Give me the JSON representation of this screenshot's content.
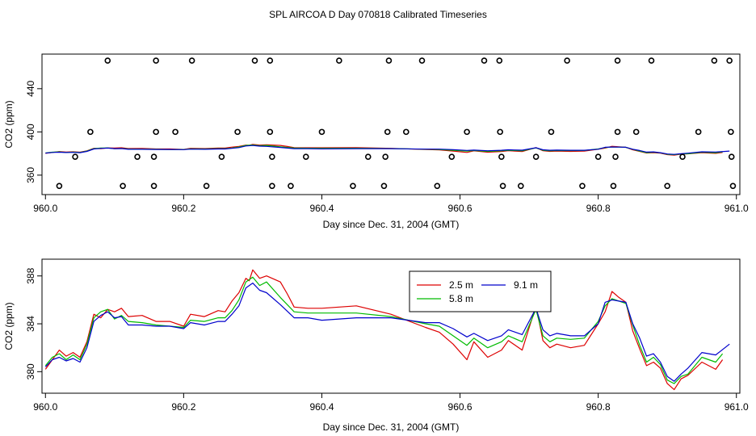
{
  "title": "SPL AIRCOA D  Day 070818  Calibrated Timeseries",
  "colors": {
    "red": "#dd0000",
    "green": "#00bb00",
    "blue": "#0000cc",
    "axis": "#000000"
  },
  "chart_data": [
    {
      "type": "scatter+line",
      "title": "",
      "xlabel": "Day since Dec. 31, 2004 (GMT)",
      "ylabel": "CO2 (ppm)",
      "xlim": [
        959.995,
        961.005
      ],
      "ylim": [
        342,
        472
      ],
      "xticks": [
        960.0,
        960.2,
        960.4,
        960.6,
        960.8,
        961.0
      ],
      "xtick_labels": [
        "960.0",
        "960.2",
        "960.4",
        "960.6",
        "960.8",
        "961.0"
      ],
      "yticks": [
        360,
        400,
        440
      ],
      "ytick_labels": [
        "360",
        "400",
        "440"
      ],
      "calibration_points": [
        {
          "x": 960.09,
          "y": 466
        },
        {
          "x": 960.16,
          "y": 466
        },
        {
          "x": 960.212,
          "y": 466
        },
        {
          "x": 960.303,
          "y": 466
        },
        {
          "x": 960.325,
          "y": 466
        },
        {
          "x": 960.425,
          "y": 466
        },
        {
          "x": 960.497,
          "y": 466
        },
        {
          "x": 960.545,
          "y": 466
        },
        {
          "x": 960.635,
          "y": 466
        },
        {
          "x": 960.657,
          "y": 466
        },
        {
          "x": 960.755,
          "y": 466
        },
        {
          "x": 960.828,
          "y": 466
        },
        {
          "x": 960.877,
          "y": 466
        },
        {
          "x": 960.968,
          "y": 466
        },
        {
          "x": 960.99,
          "y": 466
        },
        {
          "x": 960.065,
          "y": 400
        },
        {
          "x": 960.16,
          "y": 400
        },
        {
          "x": 960.188,
          "y": 400
        },
        {
          "x": 960.278,
          "y": 400
        },
        {
          "x": 960.325,
          "y": 400
        },
        {
          "x": 960.4,
          "y": 400
        },
        {
          "x": 960.495,
          "y": 400
        },
        {
          "x": 960.522,
          "y": 400
        },
        {
          "x": 960.61,
          "y": 400
        },
        {
          "x": 960.658,
          "y": 400
        },
        {
          "x": 960.732,
          "y": 400
        },
        {
          "x": 960.828,
          "y": 400
        },
        {
          "x": 960.855,
          "y": 400
        },
        {
          "x": 960.945,
          "y": 400
        },
        {
          "x": 960.992,
          "y": 400
        },
        {
          "x": 960.043,
          "y": 377
        },
        {
          "x": 960.133,
          "y": 377
        },
        {
          "x": 960.157,
          "y": 377
        },
        {
          "x": 960.255,
          "y": 377
        },
        {
          "x": 960.328,
          "y": 377
        },
        {
          "x": 960.377,
          "y": 377
        },
        {
          "x": 960.467,
          "y": 377
        },
        {
          "x": 960.492,
          "y": 377
        },
        {
          "x": 960.588,
          "y": 377
        },
        {
          "x": 960.66,
          "y": 377
        },
        {
          "x": 960.71,
          "y": 377
        },
        {
          "x": 960.8,
          "y": 377
        },
        {
          "x": 960.825,
          "y": 377
        },
        {
          "x": 960.922,
          "y": 377
        },
        {
          "x": 960.993,
          "y": 377
        },
        {
          "x": 960.02,
          "y": 350
        },
        {
          "x": 960.112,
          "y": 350
        },
        {
          "x": 960.157,
          "y": 350
        },
        {
          "x": 960.233,
          "y": 350
        },
        {
          "x": 960.328,
          "y": 350
        },
        {
          "x": 960.355,
          "y": 350
        },
        {
          "x": 960.445,
          "y": 350
        },
        {
          "x": 960.49,
          "y": 350
        },
        {
          "x": 960.567,
          "y": 350
        },
        {
          "x": 960.662,
          "y": 350
        },
        {
          "x": 960.688,
          "y": 350
        },
        {
          "x": 960.777,
          "y": 350
        },
        {
          "x": 960.822,
          "y": 350
        },
        {
          "x": 960.9,
          "y": 350
        },
        {
          "x": 960.995,
          "y": 350
        }
      ],
      "series": [
        {
          "name": "2.5 m",
          "color": "red",
          "source": "chart_data.1.series.0"
        },
        {
          "name": "5.8 m",
          "color": "green",
          "source": "chart_data.1.series.1"
        },
        {
          "name": "9.1 m",
          "color": "blue",
          "source": "chart_data.1.series.2"
        }
      ]
    },
    {
      "type": "line",
      "title": "",
      "xlabel": "Day since Dec. 31, 2004 (GMT)",
      "ylabel": "CO2 (ppm)",
      "xlim": [
        959.995,
        961.005
      ],
      "ylim": [
        378.2,
        389.4
      ],
      "xticks": [
        960.0,
        960.2,
        960.4,
        960.6,
        960.8,
        961.0
      ],
      "xtick_labels": [
        "960.0",
        "960.2",
        "960.4",
        "960.6",
        "960.8",
        "961.0"
      ],
      "yticks": [
        380,
        384,
        388
      ],
      "ytick_labels": [
        "380",
        "384",
        "388"
      ],
      "legend": {
        "position": "top-center",
        "entries": [
          "2.5 m",
          "5.8 m",
          "9.1 m"
        ]
      },
      "series": [
        {
          "name": "2.5 m",
          "color": "red",
          "x": [
            960.0,
            960.01,
            960.02,
            960.03,
            960.04,
            960.05,
            960.06,
            960.07,
            960.08,
            960.09,
            960.1,
            960.11,
            960.12,
            960.14,
            960.16,
            960.18,
            960.2,
            960.21,
            960.23,
            960.25,
            960.26,
            960.27,
            960.28,
            960.29,
            960.295,
            960.3,
            960.31,
            960.32,
            960.34,
            960.35,
            960.36,
            960.38,
            960.4,
            960.45,
            960.5,
            960.55,
            960.57,
            960.59,
            960.61,
            960.62,
            960.64,
            960.66,
            960.67,
            960.69,
            960.71,
            960.72,
            960.73,
            960.74,
            960.76,
            960.78,
            960.8,
            960.81,
            960.82,
            960.83,
            960.84,
            960.85,
            960.86,
            960.87,
            960.88,
            960.89,
            960.9,
            960.91,
            960.92,
            960.93,
            960.95,
            960.97,
            960.98
          ],
          "values": [
            380.2,
            381.0,
            381.8,
            381.3,
            381.6,
            381.2,
            382.5,
            384.8,
            384.5,
            385.2,
            385.0,
            385.3,
            384.6,
            384.7,
            384.2,
            384.2,
            383.8,
            384.8,
            384.6,
            385.1,
            385.0,
            385.9,
            386.6,
            387.8,
            387.6,
            388.5,
            387.8,
            388.0,
            387.5,
            386.5,
            385.4,
            385.3,
            385.3,
            385.5,
            384.8,
            383.7,
            383.3,
            382.3,
            381.0,
            382.5,
            381.2,
            381.8,
            382.6,
            381.8,
            385.5,
            382.6,
            382.0,
            382.3,
            382.0,
            382.2,
            384.0,
            385.0,
            386.7,
            386.2,
            385.8,
            383.4,
            381.9,
            380.5,
            380.8,
            380.3,
            379.0,
            378.5,
            379.4,
            379.7,
            380.8,
            380.2,
            381.0
          ]
        },
        {
          "name": "5.8 m",
          "color": "green",
          "x": [
            960.0,
            960.01,
            960.02,
            960.03,
            960.04,
            960.05,
            960.06,
            960.07,
            960.08,
            960.09,
            960.1,
            960.11,
            960.12,
            960.14,
            960.16,
            960.18,
            960.2,
            960.21,
            960.23,
            960.25,
            960.26,
            960.27,
            960.28,
            960.29,
            960.3,
            960.31,
            960.32,
            960.34,
            960.36,
            960.38,
            960.4,
            960.45,
            960.5,
            960.55,
            960.57,
            960.59,
            960.61,
            960.62,
            960.64,
            960.66,
            960.67,
            960.69,
            960.71,
            960.72,
            960.73,
            960.74,
            960.76,
            960.78,
            960.8,
            960.81,
            960.82,
            960.83,
            960.84,
            960.85,
            960.86,
            960.87,
            960.88,
            960.89,
            960.9,
            960.91,
            960.92,
            960.93,
            960.95,
            960.97,
            960.98
          ],
          "values": [
            380.5,
            381.2,
            381.5,
            381.0,
            381.4,
            381.0,
            382.3,
            384.5,
            385.0,
            385.2,
            384.4,
            384.7,
            384.2,
            384.1,
            383.9,
            383.8,
            383.7,
            384.3,
            384.2,
            384.5,
            384.5,
            385.1,
            386.0,
            387.5,
            387.9,
            387.2,
            387.5,
            386.2,
            385.0,
            384.9,
            384.9,
            384.9,
            384.6,
            384.0,
            383.8,
            383.0,
            382.2,
            382.8,
            382.0,
            382.5,
            383.0,
            382.5,
            385.2,
            383.0,
            382.5,
            382.8,
            382.7,
            382.8,
            384.2,
            385.5,
            386.1,
            385.9,
            385.7,
            383.9,
            382.2,
            380.8,
            381.2,
            380.6,
            379.3,
            379.0,
            379.6,
            379.8,
            381.2,
            380.8,
            381.5
          ]
        },
        {
          "name": "9.1 m",
          "color": "blue",
          "x": [
            960.0,
            960.01,
            960.02,
            960.03,
            960.04,
            960.05,
            960.06,
            960.07,
            960.08,
            960.09,
            960.1,
            960.11,
            960.12,
            960.14,
            960.16,
            960.18,
            960.2,
            960.21,
            960.23,
            960.25,
            960.26,
            960.27,
            960.28,
            960.29,
            960.3,
            960.31,
            960.32,
            960.34,
            960.36,
            960.38,
            960.4,
            960.45,
            960.5,
            960.55,
            960.57,
            960.59,
            960.61,
            960.62,
            960.64,
            960.66,
            960.67,
            960.69,
            960.71,
            960.72,
            960.73,
            960.74,
            960.76,
            960.78,
            960.8,
            960.81,
            960.82,
            960.83,
            960.84,
            960.85,
            960.86,
            960.87,
            960.88,
            960.89,
            960.9,
            960.91,
            960.92,
            960.93,
            960.95,
            960.97,
            960.99
          ],
          "values": [
            380.4,
            381.0,
            381.2,
            380.9,
            381.1,
            380.8,
            382.0,
            384.2,
            384.7,
            385.0,
            384.5,
            384.6,
            383.9,
            383.9,
            383.8,
            383.8,
            383.6,
            384.1,
            383.9,
            384.2,
            384.2,
            384.8,
            385.5,
            387.0,
            387.4,
            386.8,
            386.6,
            385.6,
            384.5,
            384.5,
            384.3,
            384.5,
            384.5,
            384.1,
            384.1,
            383.6,
            382.9,
            383.2,
            382.6,
            383.0,
            383.5,
            383.1,
            385.3,
            383.5,
            383.0,
            383.2,
            383.0,
            383.0,
            384.0,
            385.8,
            386.0,
            385.9,
            385.8,
            384.0,
            382.8,
            381.3,
            381.5,
            380.8,
            379.6,
            379.2,
            379.8,
            380.3,
            381.6,
            381.4,
            382.3
          ]
        }
      ]
    }
  ]
}
